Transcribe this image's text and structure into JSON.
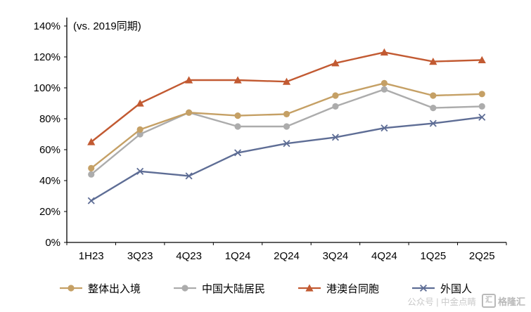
{
  "annotation": "(vs. 2019同期)",
  "watermark": {
    "text": "公众号 | 中金点睛",
    "logo_glyph": "汇",
    "logo_text": "格隆汇"
  },
  "chart_data": {
    "type": "line",
    "title": "",
    "xlabel": "",
    "ylabel": "",
    "categories": [
      "1H23",
      "3Q23",
      "4Q23",
      "1Q24",
      "2Q24",
      "3Q24",
      "4Q24",
      "1Q25",
      "2Q25"
    ],
    "series": [
      {
        "name": "整体出入境",
        "color": "#C5A065",
        "marker": "circle",
        "values": [
          48,
          73,
          84,
          82,
          83,
          95,
          103,
          95,
          96
        ]
      },
      {
        "name": "中国大陆居民",
        "color": "#ACACAC",
        "marker": "circle",
        "values": [
          44,
          70,
          84,
          75,
          75,
          88,
          99,
          87,
          88
        ]
      },
      {
        "name": "港澳台同胞",
        "color": "#C25A32",
        "marker": "triangle",
        "values": [
          65,
          90,
          105,
          105,
          104,
          116,
          123,
          117,
          118
        ]
      },
      {
        "name": "外国人",
        "color": "#5E6D95",
        "marker": "x",
        "values": [
          27,
          46,
          43,
          58,
          64,
          68,
          74,
          77,
          81
        ]
      }
    ],
    "ylim": [
      0,
      140
    ],
    "ytick_step": 20,
    "ytick_format": "percent",
    "grid": false,
    "legend_position": "bottom"
  }
}
